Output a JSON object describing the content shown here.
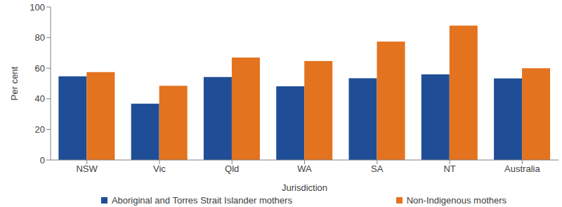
{
  "chart_data": {
    "type": "bar",
    "x_label": "Jurisdiction",
    "y_label": "Per cent",
    "categories": [
      "NSW",
      "Vic",
      "Qld",
      "WA",
      "SA",
      "NT",
      "Australia"
    ],
    "series": [
      {
        "name": "Aboriginal and Torres Strait Islander mothers",
        "color": "#1f4e96",
        "values": [
          54.7,
          36.8,
          54.2,
          48.2,
          53.4,
          56.0,
          53.3
        ]
      },
      {
        "name": "Non-Indigenous mothers",
        "color": "#e3731f",
        "values": [
          57.5,
          48.5,
          67.0,
          64.7,
          77.4,
          87.9,
          60.0
        ]
      }
    ],
    "ylim": [
      0,
      100
    ],
    "yticks": [
      0,
      20,
      40,
      60,
      80,
      100
    ],
    "grid": false,
    "legend": "bottom"
  }
}
